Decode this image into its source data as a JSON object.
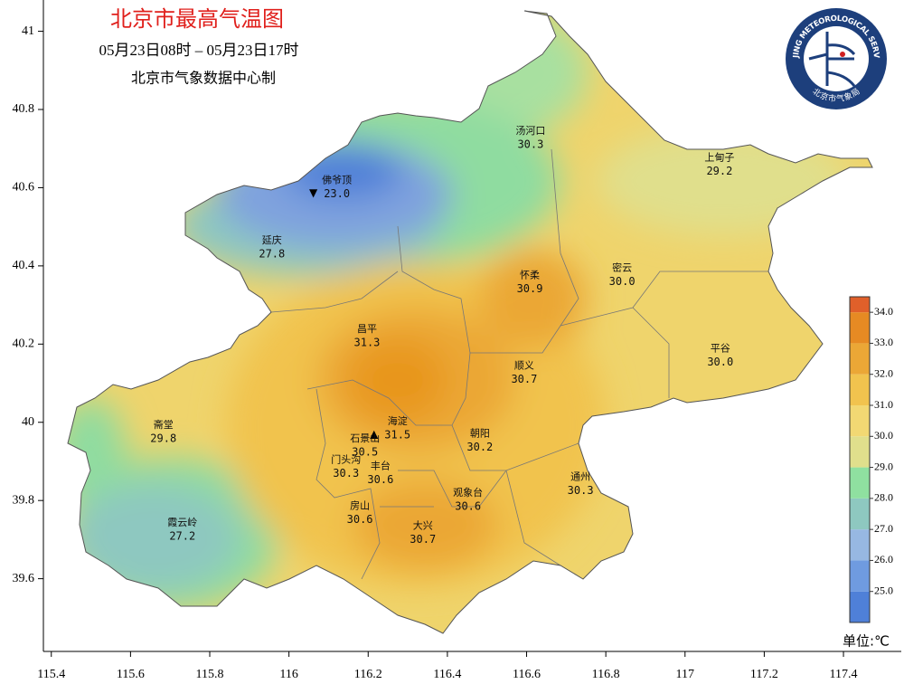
{
  "map": {
    "title": "北京市最高气温图",
    "subtitle": "05月23日08时  –  05月23日17时",
    "source": "北京市气象数据中心制",
    "logo": {
      "text_en": "BEIJING METEOROLOGICAL SERVICE",
      "text_cn": "北京市气象局"
    },
    "xlim": [
      115.38,
      117.546
    ],
    "ylim": [
      39.414,
      41.08
    ],
    "xticks": [
      115.4,
      115.6,
      115.8,
      116,
      116.2,
      116.4,
      116.6,
      116.8,
      117,
      117.2,
      117.4
    ],
    "yticks": [
      39.6,
      39.8,
      40,
      40.2,
      40.4,
      40.6,
      40.8,
      41
    ],
    "stations": [
      {
        "name": "汤河口",
        "value": 30.3,
        "value_label": "30.3",
        "lon": 116.61,
        "lat": 40.745
      },
      {
        "name": "上甸子",
        "value": 29.2,
        "value_label": "29.2",
        "lon": 117.087,
        "lat": 40.676
      },
      {
        "name": "佛爷顶",
        "value": 23.0,
        "value_label": "23.0",
        "lon": 116.121,
        "lat": 40.618,
        "marker": "▼"
      },
      {
        "name": "延庆",
        "value": 27.8,
        "value_label": "27.8",
        "lon": 115.957,
        "lat": 40.465
      },
      {
        "name": "怀柔",
        "value": 30.9,
        "value_label": "30.9",
        "lon": 116.608,
        "lat": 40.375
      },
      {
        "name": "密云",
        "value": 30.0,
        "value_label": "30.0",
        "lon": 116.841,
        "lat": 40.394
      },
      {
        "name": "昌平",
        "value": 31.3,
        "value_label": "31.3",
        "lon": 116.197,
        "lat": 40.238
      },
      {
        "name": "平谷",
        "value": 30.0,
        "value_label": "30.0",
        "lon": 117.089,
        "lat": 40.188
      },
      {
        "name": "顺义",
        "value": 30.7,
        "value_label": "30.7",
        "lon": 116.594,
        "lat": 40.144
      },
      {
        "name": "海淀",
        "value": 31.5,
        "value_label": "31.5",
        "lon": 116.274,
        "lat": 40.002,
        "marker": "▲"
      },
      {
        "name": "朝阳",
        "value": 30.2,
        "value_label": "30.2",
        "lon": 116.482,
        "lat": 39.97
      },
      {
        "name": "石景山",
        "value": 30.5,
        "value_label": "30.5",
        "lon": 116.192,
        "lat": 39.958
      },
      {
        "name": "门头沟",
        "value": 30.3,
        "value_label": "30.3",
        "lon": 116.144,
        "lat": 39.903
      },
      {
        "name": "丰台",
        "value": 30.6,
        "value_label": "30.6",
        "lon": 116.231,
        "lat": 39.887
      },
      {
        "name": "通州",
        "value": 30.3,
        "value_label": "30.3",
        "lon": 116.736,
        "lat": 39.859
      },
      {
        "name": "观象台",
        "value": 30.6,
        "value_label": "30.6",
        "lon": 116.452,
        "lat": 39.819
      },
      {
        "name": "房山",
        "value": 30.6,
        "value_label": "30.6",
        "lon": 116.179,
        "lat": 39.785
      },
      {
        "name": "大兴",
        "value": 30.7,
        "value_label": "30.7",
        "lon": 116.338,
        "lat": 39.734
      },
      {
        "name": "霞云岭",
        "value": 27.2,
        "value_label": "27.2",
        "lon": 115.731,
        "lat": 39.743
      },
      {
        "name": "斋堂",
        "value": 29.8,
        "value_label": "29.8",
        "lon": 115.683,
        "lat": 39.993
      }
    ],
    "colorbar": {
      "clim": [
        24,
        34.5
      ],
      "ticks": [
        {
          "value": 25,
          "label": "25.0"
        },
        {
          "value": 26,
          "label": "26.0"
        },
        {
          "value": 27,
          "label": "27.0"
        },
        {
          "value": 28,
          "label": "28.0"
        },
        {
          "value": 29,
          "label": "29.0"
        },
        {
          "value": 30,
          "label": "30.0"
        },
        {
          "value": 31,
          "label": "31.0"
        },
        {
          "value": 32,
          "label": "32.0"
        },
        {
          "value": 33,
          "label": "33.0"
        },
        {
          "value": 34,
          "label": "34.0"
        }
      ],
      "colors": [
        "#4f80d8",
        "#6f9be0",
        "#97b8e2",
        "#8ec8c0",
        "#8fe0a0",
        "#e0df8c",
        "#f2d873",
        "#f1c34e",
        "#eba736",
        "#e68a23",
        "#e0602a"
      ],
      "unit": "单位:℃"
    }
  }
}
